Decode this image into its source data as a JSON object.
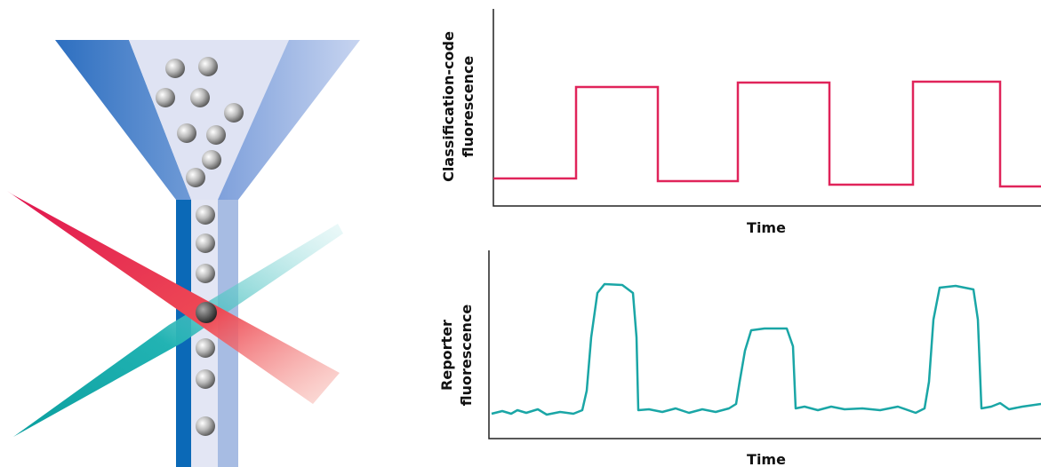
{
  "plots": [
    {
      "y_label": [
        "Classification-code",
        "fluorescence"
      ],
      "x_label": "Time"
    },
    {
      "y_label": [
        "Reporter",
        "fluorescence"
      ],
      "x_label": "Time"
    }
  ]
}
